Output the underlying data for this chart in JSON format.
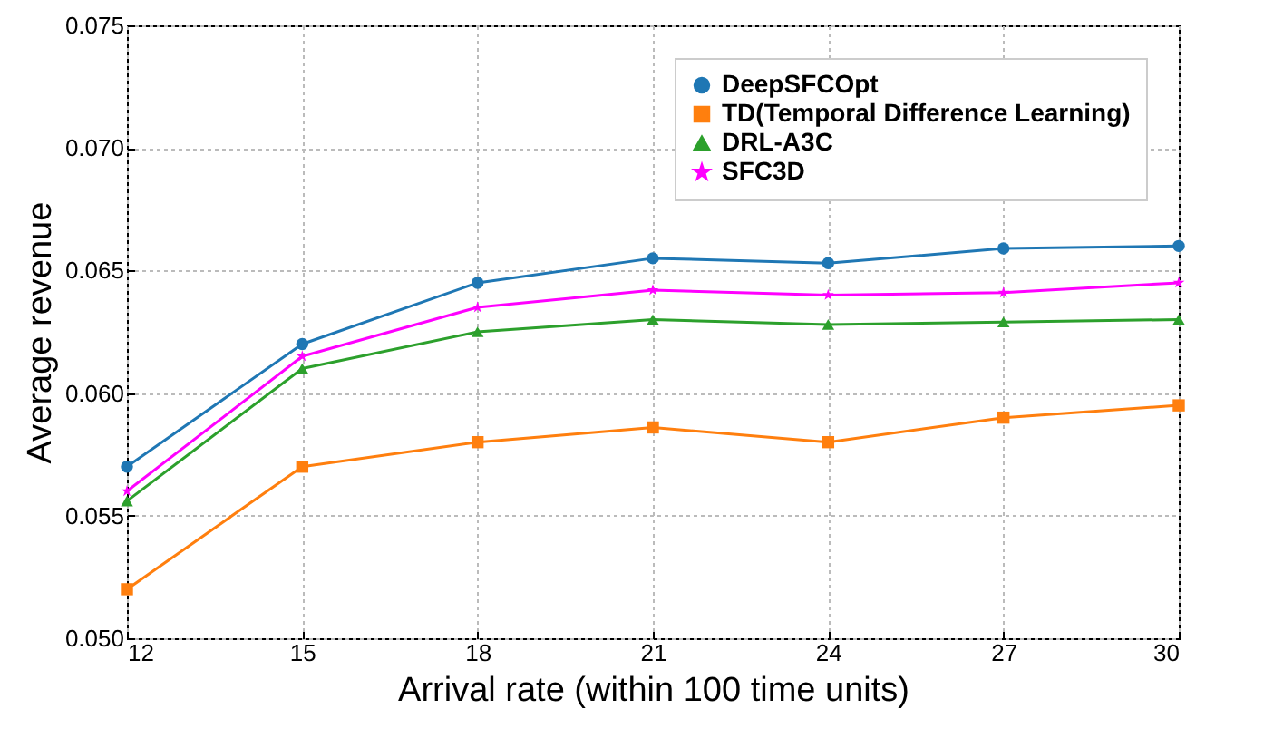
{
  "chart_data": {
    "type": "line",
    "xlabel": "Arrival rate (within 100 time units)",
    "ylabel": "Average revenue",
    "x": [
      12,
      15,
      18,
      21,
      24,
      27,
      30
    ],
    "series": [
      {
        "name": "DeepSFCOpt",
        "color": "#1f77b4",
        "marker": "circle",
        "values": [
          0.057,
          0.062,
          0.0645,
          0.0655,
          0.0653,
          0.0659,
          0.066
        ]
      },
      {
        "name": "TD(Temporal Difference Learning)",
        "color": "#ff7f0e",
        "marker": "square",
        "values": [
          0.052,
          0.057,
          0.058,
          0.0586,
          0.058,
          0.059,
          0.0595
        ]
      },
      {
        "name": "DRL-A3C",
        "color": "#2ca02c",
        "marker": "triangle",
        "values": [
          0.0556,
          0.061,
          0.0625,
          0.063,
          0.0628,
          0.0629,
          0.063
        ]
      },
      {
        "name": "SFC3D",
        "color": "#ff00ff",
        "marker": "star",
        "values": [
          0.056,
          0.0615,
          0.0635,
          0.0642,
          0.064,
          0.0641,
          0.0645
        ]
      }
    ],
    "xlim": [
      12,
      30
    ],
    "xticks": [
      12,
      15,
      18,
      21,
      24,
      27,
      30
    ],
    "ylim": [
      0.05,
      0.075
    ],
    "yticks": [
      {
        "value": 0.05,
        "label": "0.050"
      },
      0.055,
      {
        "value": 0.06,
        "label": "0.060"
      },
      0.065,
      {
        "value": 0.07,
        "label": "0.070"
      },
      0.075
    ],
    "grid": true,
    "legend": "top right",
    "line_style": "solid"
  }
}
